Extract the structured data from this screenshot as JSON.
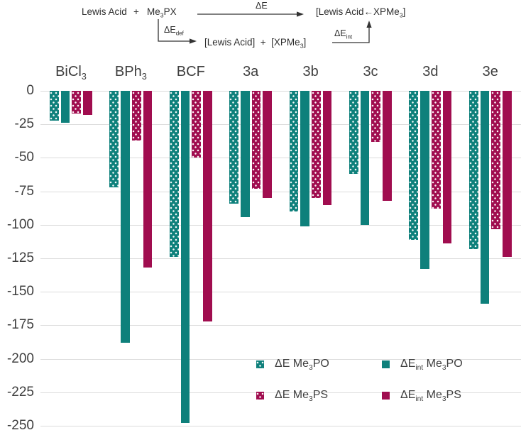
{
  "colors": {
    "teal": "#0E807B",
    "maroon": "#A00D4F",
    "grid": "#DCDCDC",
    "text": "#3F3F3F",
    "scheme_line": "#333333"
  },
  "scheme": {
    "reactant_1": "Lewis Acid",
    "plus": "+",
    "reactant_2": [
      {
        "t": "Me"
      },
      {
        "t": "3",
        "sub": true
      },
      {
        "t": "PX"
      }
    ],
    "e_label": "ΔE",
    "product": [
      {
        "t": "[Lewis Acid"
      },
      {
        "t": "←"
      },
      {
        "t": "XPMe"
      },
      {
        "t": "3",
        "sub": true
      },
      {
        "t": "]"
      }
    ],
    "def_label": [
      {
        "t": "ΔE"
      },
      {
        "t": "def",
        "sub": true
      }
    ],
    "intermediate": [
      {
        "t": "[Lewis Acid]  +  [XPMe"
      },
      {
        "t": "3",
        "sub": true
      },
      {
        "t": "]"
      }
    ],
    "int_label": [
      {
        "t": "ΔE"
      },
      {
        "t": "int",
        "sub": true
      }
    ]
  },
  "chart_data": {
    "type": "bar",
    "orientation": "vertical-negative",
    "grid": true,
    "legend_position": "inside-bottom-right",
    "ylim": [
      0,
      -250
    ],
    "yticks": [
      0,
      -25,
      -50,
      -75,
      -100,
      -125,
      -150,
      -175,
      -200,
      -225,
      -250
    ],
    "categories": [
      [
        {
          "t": "BiCl"
        },
        {
          "t": "3",
          "sub": true
        }
      ],
      [
        {
          "t": "BPh"
        },
        {
          "t": "3",
          "sub": true
        }
      ],
      [
        {
          "t": "BCF"
        }
      ],
      [
        {
          "t": "3a"
        }
      ],
      [
        {
          "t": "3b"
        }
      ],
      [
        {
          "t": "3c"
        }
      ],
      [
        {
          "t": "3d"
        }
      ],
      [
        {
          "t": "3e"
        }
      ]
    ],
    "series": [
      {
        "name": [
          {
            "t": "ΔE Me"
          },
          {
            "t": "3",
            "sub": true
          },
          {
            "t": "PO"
          }
        ],
        "color": "#0E807B",
        "pattern": "dotted",
        "values": [
          -22,
          -72,
          -124,
          -84,
          -90,
          -62,
          -111,
          -118
        ]
      },
      {
        "name": [
          {
            "t": "ΔE"
          },
          {
            "t": "int",
            "sub": true
          },
          {
            "t": " Me"
          },
          {
            "t": "3",
            "sub": true
          },
          {
            "t": "PO"
          }
        ],
        "color": "#0E807B",
        "pattern": "solid",
        "values": [
          -24,
          -188,
          -248,
          -94,
          -101,
          -100,
          -133,
          -159
        ]
      },
      {
        "name": [
          {
            "t": "ΔE Me"
          },
          {
            "t": "3",
            "sub": true
          },
          {
            "t": "PS"
          }
        ],
        "color": "#A00D4F",
        "pattern": "dotted",
        "values": [
          -17,
          -37,
          -50,
          -73,
          -80,
          -38,
          -88,
          -103
        ]
      },
      {
        "name": [
          {
            "t": "ΔE"
          },
          {
            "t": "int",
            "sub": true
          },
          {
            "t": " Me"
          },
          {
            "t": "3",
            "sub": true
          },
          {
            "t": "PS"
          }
        ],
        "color": "#A00D4F",
        "pattern": "solid",
        "values": [
          -18,
          -132,
          -172,
          -80,
          -85,
          -82,
          -114,
          -124
        ]
      }
    ]
  }
}
